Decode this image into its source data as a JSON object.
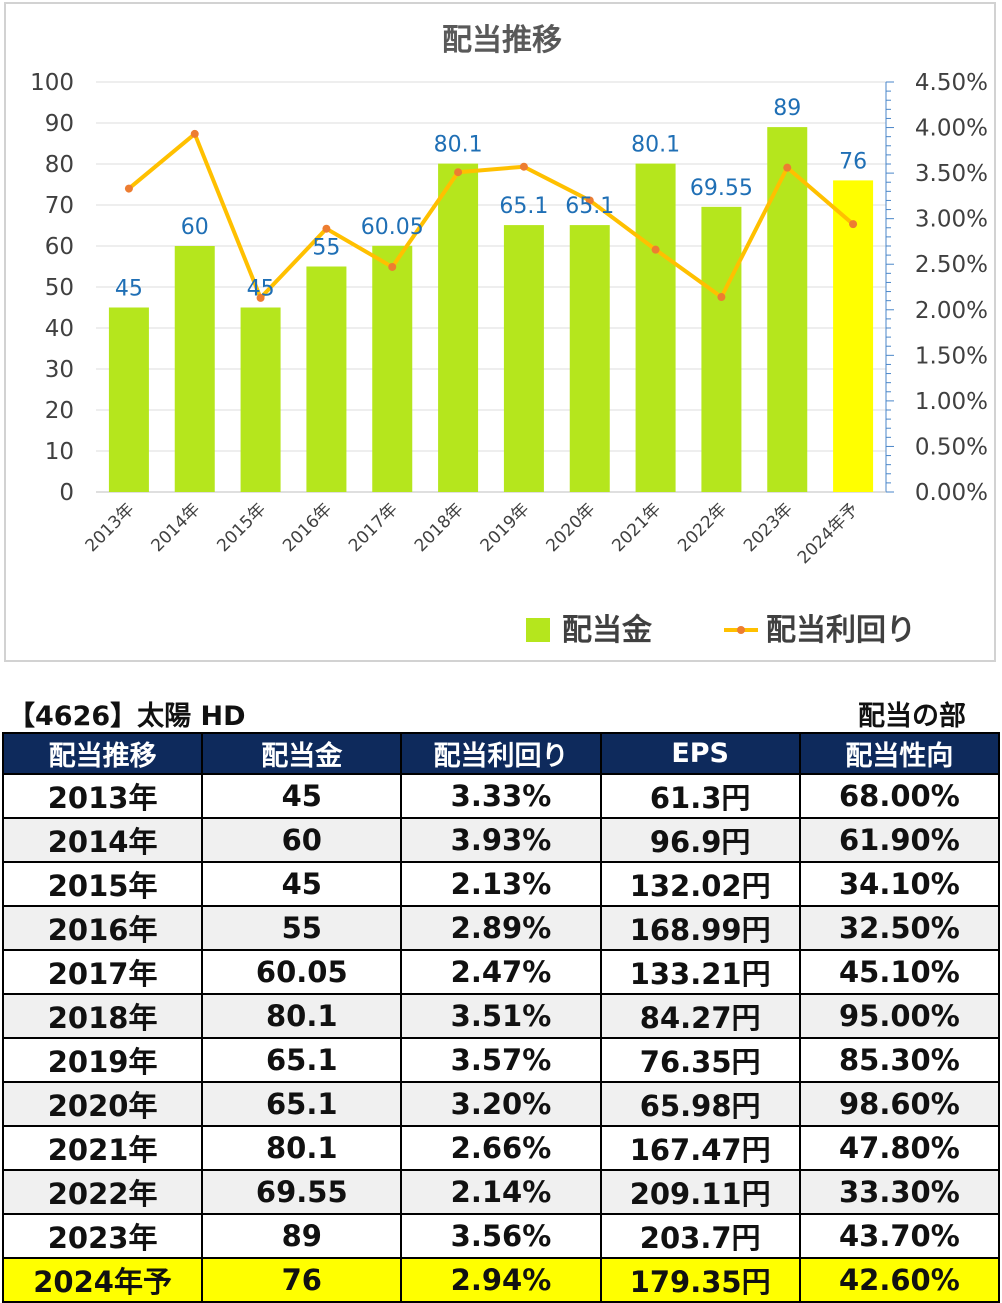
{
  "chart_data": {
    "type": "bar+line",
    "title": "配当推移",
    "categories": [
      "2013年",
      "2014年",
      "2015年",
      "2016年",
      "2017年",
      "2018年",
      "2019年",
      "2020年",
      "2021年",
      "2022年",
      "2023年",
      "2024年予"
    ],
    "series": [
      {
        "name": "配当金",
        "type": "bar",
        "axis": "left",
        "values": [
          45,
          60,
          45,
          55,
          60.05,
          80.1,
          65.1,
          65.1,
          80.1,
          69.55,
          89,
          76
        ],
        "data_labels": [
          "45",
          "60",
          "45",
          "55",
          "60.05",
          "80.1",
          "65.1",
          "65.1",
          "80.1",
          "69.55",
          "89",
          "76"
        ],
        "color": "#b5e61d",
        "highlight_color": "#ffff00",
        "highlight_index": 11
      },
      {
        "name": "配当利回り",
        "type": "line",
        "axis": "right",
        "values": [
          3.33,
          3.93,
          2.13,
          2.89,
          2.47,
          3.51,
          3.57,
          3.2,
          2.66,
          2.14,
          3.56,
          2.94
        ],
        "color": "#ffc000",
        "marker_color": "#ed7d31"
      }
    ],
    "y_left": {
      "range": [
        0,
        100
      ],
      "ticks": [
        "0",
        "10",
        "20",
        "30",
        "40",
        "50",
        "60",
        "70",
        "80",
        "90",
        "100"
      ]
    },
    "y_right": {
      "range": [
        0,
        4.5
      ],
      "ticks": [
        "0.00%",
        "0.50%",
        "1.00%",
        "1.50%",
        "2.00%",
        "2.50%",
        "3.00%",
        "3.50%",
        "4.00%",
        "4.50%"
      ]
    },
    "grid": true,
    "legend": "bottom-right",
    "label_color": "#1f6fb5"
  },
  "table": {
    "title": "【4626】太陽 HD",
    "section": "配当の部",
    "headers": [
      "配当推移",
      "配当金",
      "配当利回り",
      "EPS",
      "配当性向"
    ],
    "rows": [
      [
        "2013年",
        "45",
        "3.33%",
        "61.3円",
        "68.00%"
      ],
      [
        "2014年",
        "60",
        "3.93%",
        "96.9円",
        "61.90%"
      ],
      [
        "2015年",
        "45",
        "2.13%",
        "132.02円",
        "34.10%"
      ],
      [
        "2016年",
        "55",
        "2.89%",
        "168.99円",
        "32.50%"
      ],
      [
        "2017年",
        "60.05",
        "2.47%",
        "133.21円",
        "45.10%"
      ],
      [
        "2018年",
        "80.1",
        "3.51%",
        "84.27円",
        "95.00%"
      ],
      [
        "2019年",
        "65.1",
        "3.57%",
        "76.35円",
        "85.30%"
      ],
      [
        "2020年",
        "65.1",
        "3.20%",
        "65.98円",
        "98.60%"
      ],
      [
        "2021年",
        "80.1",
        "2.66%",
        "167.47円",
        "47.80%"
      ],
      [
        "2022年",
        "69.55",
        "2.14%",
        "209.11円",
        "33.30%"
      ],
      [
        "2023年",
        "89",
        "3.56%",
        "203.7円",
        "43.70%"
      ],
      [
        "2024年予",
        "76",
        "2.94%",
        "179.35円",
        "42.60%"
      ]
    ],
    "header_color": "#0e2a5c",
    "highlight_row_color": "#ffff00"
  }
}
